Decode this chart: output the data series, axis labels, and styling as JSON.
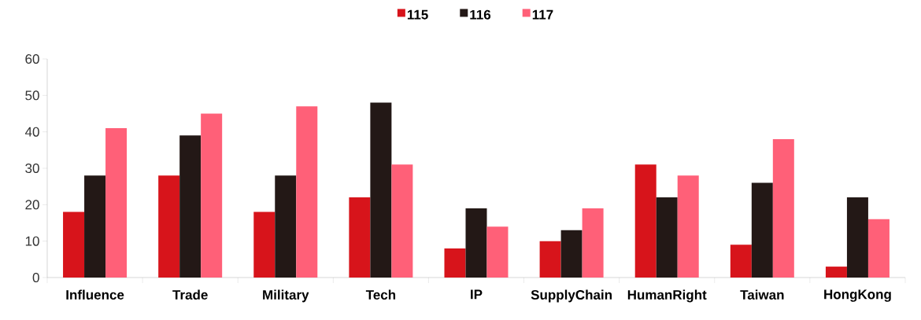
{
  "chart_data": {
    "type": "bar",
    "categories": [
      "Influence",
      "Trade",
      "Military",
      "Tech",
      "IP",
      "SupplyChain",
      "HumanRight",
      "Taiwan",
      "HongKong"
    ],
    "series": [
      {
        "name": "115",
        "color": "#d7141b",
        "values": [
          18,
          28,
          18,
          22,
          8,
          10,
          31,
          9,
          3
        ]
      },
      {
        "name": "116",
        "color": "#231816",
        "values": [
          28,
          39,
          28,
          48,
          19,
          13,
          22,
          26,
          22
        ]
      },
      {
        "name": "117",
        "color": "#ff6078",
        "values": [
          41,
          45,
          47,
          31,
          14,
          19,
          28,
          38,
          16
        ]
      }
    ],
    "ylim": [
      0,
      60
    ],
    "yticks": [
      0,
      10,
      20,
      30,
      40,
      50,
      60
    ],
    "grid": false,
    "legend": "top"
  }
}
